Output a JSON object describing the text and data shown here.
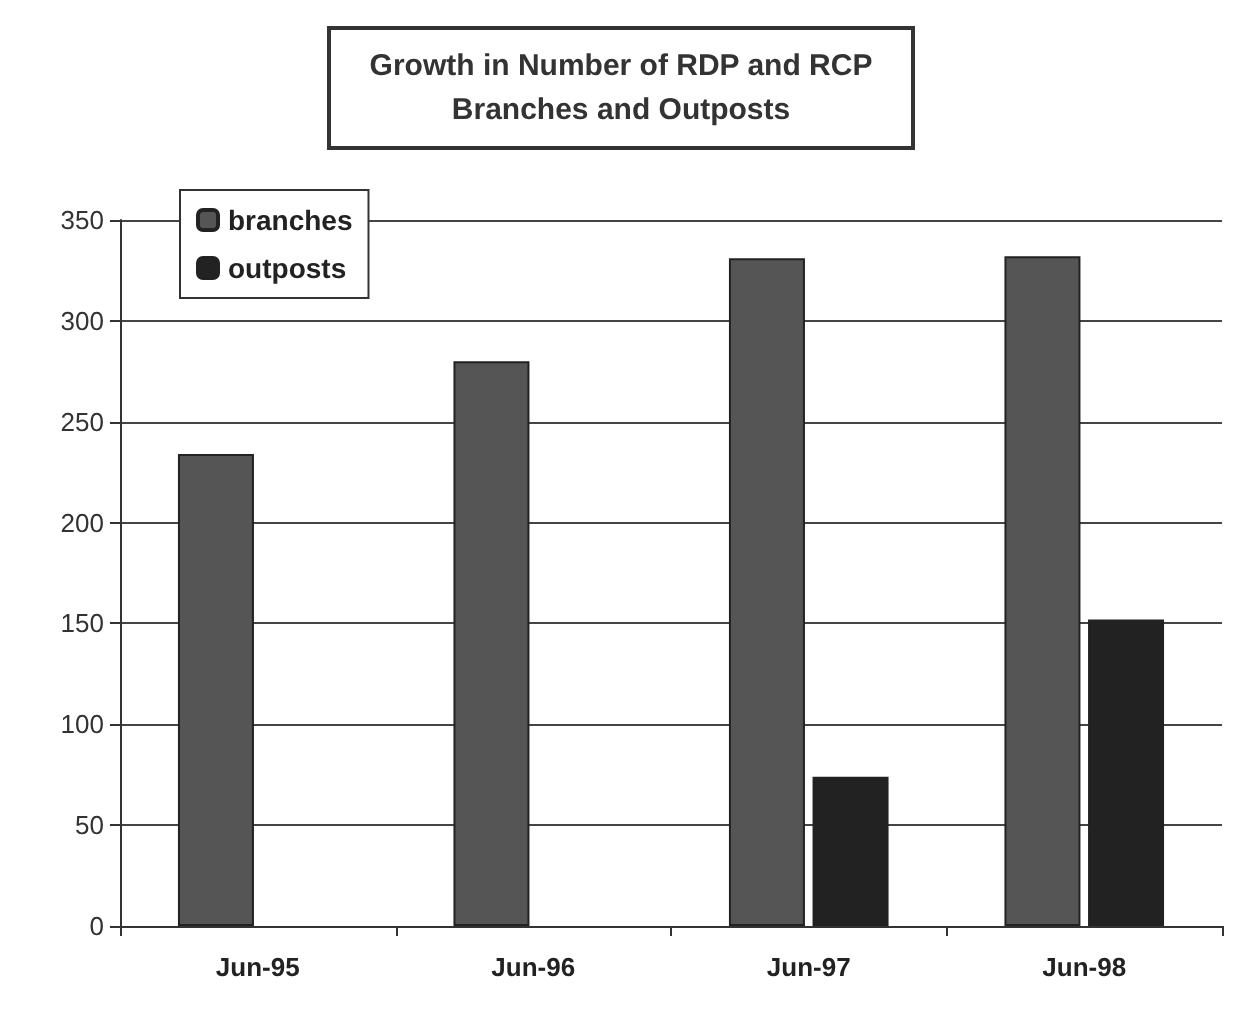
{
  "chart_data": {
    "type": "bar",
    "title": "Growth in Number of RDP and RCP\nBranches and Outposts",
    "categories": [
      "Jun-95",
      "Jun-96",
      "Jun-97",
      "Jun-98"
    ],
    "series": [
      {
        "name": "branches",
        "color": "#555555",
        "values": [
          234,
          280,
          331,
          332
        ]
      },
      {
        "name": "outposts",
        "color": "#222222",
        "values": [
          null,
          null,
          74,
          152
        ]
      }
    ],
    "ylim": [
      0,
      350
    ],
    "yticks": [
      0,
      50,
      100,
      150,
      200,
      250,
      300,
      350
    ],
    "grid": "y",
    "legend": "top left"
  }
}
